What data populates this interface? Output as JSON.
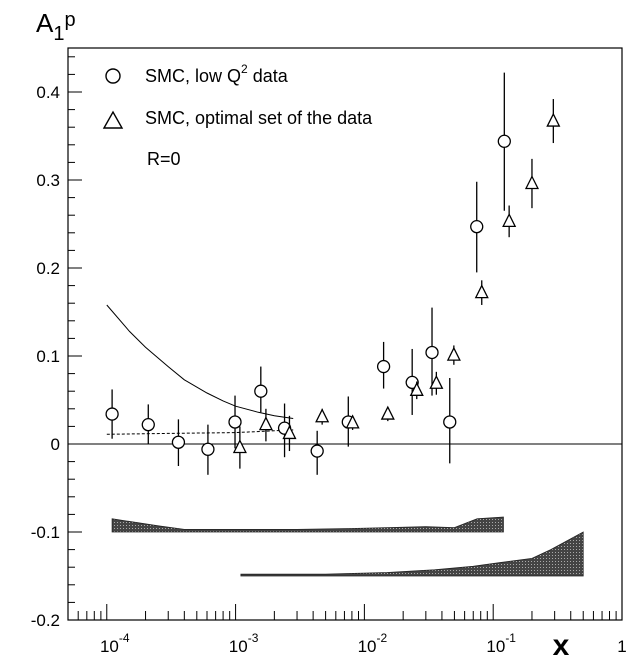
{
  "chart_data": {
    "type": "scatter",
    "title": "A",
    "title_sub": "1",
    "title_sup": "p",
    "xlabel": "x",
    "ylabel": "",
    "xscale": "log",
    "xlim": [
      5e-05,
      1
    ],
    "ylim": [
      -0.2,
      0.45
    ],
    "y_ticks": [
      "0.4",
      "0.3",
      "0.2",
      "0.1",
      "0",
      "-0.1",
      "-0.2"
    ],
    "y_tick_values": [
      0.4,
      0.3,
      0.2,
      0.1,
      0,
      -0.1,
      -0.2
    ],
    "x_tick_bases": [
      "10",
      "10",
      "10",
      "10",
      "1"
    ],
    "x_tick_exps": [
      "-4",
      "-3",
      "-2",
      "-1",
      ""
    ],
    "x_tick_values": [
      0.0001,
      0.001,
      0.01,
      0.1,
      1
    ],
    "legend": {
      "position": "top-left",
      "entries": [
        {
          "symbol": "circle",
          "text": "SMC, low Q",
          "sup": "2",
          "text_after": " data"
        },
        {
          "symbol": "triangle",
          "text": "SMC, optimal set of the data",
          "sup": "",
          "text_after": ""
        }
      ],
      "note": "R=0"
    },
    "series": [
      {
        "name": "SMC, low Q2 data",
        "marker": "circle",
        "points": [
          {
            "x": 0.00011,
            "y": 0.034,
            "lo": 0.006,
            "hi": 0.062
          },
          {
            "x": 0.00021,
            "y": 0.022,
            "lo": 0.0,
            "hi": 0.045
          },
          {
            "x": 0.00036,
            "y": 0.002,
            "lo": -0.025,
            "hi": 0.028
          },
          {
            "x": 0.00061,
            "y": -0.006,
            "lo": -0.035,
            "hi": 0.022
          },
          {
            "x": 0.00099,
            "y": 0.025,
            "lo": -0.005,
            "hi": 0.055
          },
          {
            "x": 0.00157,
            "y": 0.06,
            "lo": 0.036,
            "hi": 0.088
          },
          {
            "x": 0.0024,
            "y": 0.018,
            "lo": -0.015,
            "hi": 0.046
          },
          {
            "x": 0.0043,
            "y": -0.008,
            "lo": -0.035,
            "hi": 0.015
          },
          {
            "x": 0.0075,
            "y": 0.025,
            "lo": -0.003,
            "hi": 0.054
          },
          {
            "x": 0.0141,
            "y": 0.088,
            "lo": 0.063,
            "hi": 0.116
          },
          {
            "x": 0.0235,
            "y": 0.07,
            "lo": 0.033,
            "hi": 0.108
          },
          {
            "x": 0.0335,
            "y": 0.104,
            "lo": 0.055,
            "hi": 0.155
          },
          {
            "x": 0.046,
            "y": 0.025,
            "lo": -0.022,
            "hi": 0.075
          },
          {
            "x": 0.0745,
            "y": 0.247,
            "lo": 0.195,
            "hi": 0.298
          },
          {
            "x": 0.122,
            "y": 0.344,
            "lo": 0.265,
            "hi": 0.422
          }
        ]
      },
      {
        "name": "SMC, optimal set of the data",
        "marker": "triangle",
        "points": [
          {
            "x": 0.00108,
            "y": -0.004,
            "lo": -0.028,
            "hi": 0.02
          },
          {
            "x": 0.00172,
            "y": 0.022,
            "lo": 0.003,
            "hi": 0.04
          },
          {
            "x": 0.00262,
            "y": 0.012,
            "lo": -0.008,
            "hi": 0.032
          },
          {
            "x": 0.0047,
            "y": 0.031,
            "lo": 0.022,
            "hi": 0.04
          },
          {
            "x": 0.0081,
            "y": 0.024,
            "lo": 0.016,
            "hi": 0.032
          },
          {
            "x": 0.0152,
            "y": 0.034,
            "lo": 0.026,
            "hi": 0.042
          },
          {
            "x": 0.0255,
            "y": 0.061,
            "lo": 0.051,
            "hi": 0.071
          },
          {
            "x": 0.0362,
            "y": 0.069,
            "lo": 0.056,
            "hi": 0.082
          },
          {
            "x": 0.0495,
            "y": 0.101,
            "lo": 0.09,
            "hi": 0.112
          },
          {
            "x": 0.0815,
            "y": 0.172,
            "lo": 0.158,
            "hi": 0.186
          },
          {
            "x": 0.133,
            "y": 0.253,
            "lo": 0.235,
            "hi": 0.271
          },
          {
            "x": 0.2,
            "y": 0.296,
            "lo": 0.268,
            "hi": 0.324
          },
          {
            "x": 0.293,
            "y": 0.367,
            "lo": 0.342,
            "hi": 0.392
          }
        ]
      }
    ],
    "curves": [
      {
        "style": "solid",
        "points": [
          [
            0.0001,
            0.158
          ],
          [
            0.00015,
            0.128
          ],
          [
            0.0002,
            0.11
          ],
          [
            0.0003,
            0.088
          ],
          [
            0.0004,
            0.073
          ],
          [
            0.0006,
            0.058
          ],
          [
            0.0008,
            0.049
          ],
          [
            0.001,
            0.043
          ],
          [
            0.0015,
            0.036
          ],
          [
            0.002,
            0.032
          ],
          [
            0.0028,
            0.029
          ]
        ]
      },
      {
        "style": "dashed",
        "points": [
          [
            0.0001,
            0.011
          ],
          [
            0.0003,
            0.012
          ],
          [
            0.001,
            0.013
          ],
          [
            0.0028,
            0.016
          ]
        ]
      }
    ],
    "error_bands": [
      {
        "upper": [
          [
            0.00011,
            -0.085
          ],
          [
            0.00025,
            -0.093
          ],
          [
            0.0004,
            -0.097
          ],
          [
            0.001,
            -0.097
          ],
          [
            0.003,
            -0.097
          ],
          [
            0.008,
            -0.096
          ],
          [
            0.015,
            -0.095
          ],
          [
            0.03,
            -0.094
          ],
          [
            0.05,
            -0.095
          ],
          [
            0.075,
            -0.085
          ],
          [
            0.12,
            -0.083
          ]
        ],
        "lower": [
          [
            0.00011,
            -0.1
          ],
          [
            0.12,
            -0.1
          ]
        ]
      },
      {
        "upper": [
          [
            0.0011,
            -0.148
          ],
          [
            0.005,
            -0.148
          ],
          [
            0.015,
            -0.146
          ],
          [
            0.035,
            -0.143
          ],
          [
            0.07,
            -0.139
          ],
          [
            0.11,
            -0.135
          ],
          [
            0.2,
            -0.13
          ],
          [
            0.28,
            -0.12
          ],
          [
            0.5,
            -0.1
          ]
        ],
        "lower": [
          [
            0.0011,
            -0.15
          ],
          [
            0.5,
            -0.15
          ]
        ]
      }
    ],
    "grid": false
  }
}
